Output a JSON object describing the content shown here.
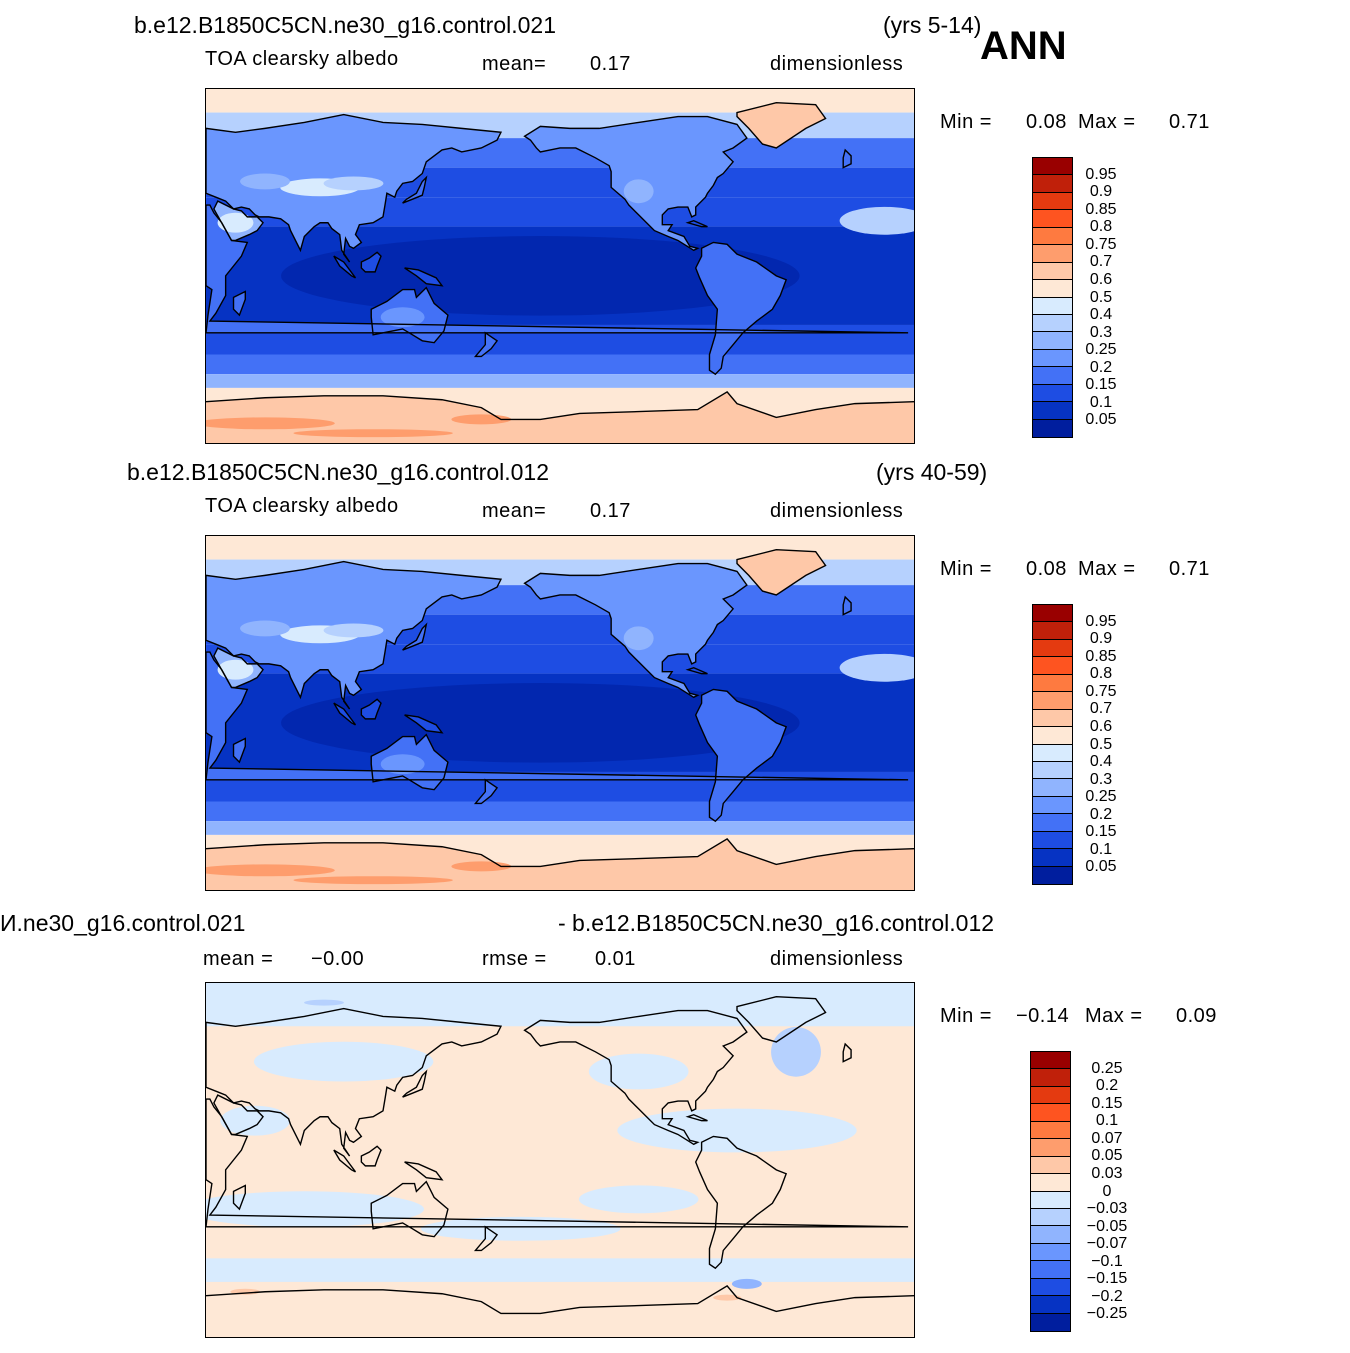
{
  "season": "ANN",
  "panels": [
    {
      "case_title": "b.e12.B1850C5CN.ne30_g16.control.021",
      "years": "(yrs 5-14)",
      "variable": "TOA  clearsky  albedo",
      "stat1_label": "mean=",
      "stat1_value": "0.17",
      "stat2_label": "",
      "stat2_value": "",
      "units": "dimensionless",
      "min_label": "Min  =",
      "min_value": "0.08",
      "max_label": "Max  =",
      "max_value": "0.71",
      "levels": [
        "0.95",
        "0.9",
        "0.85",
        "0.8",
        "0.75",
        "0.7",
        "0.6",
        "0.5",
        "0.4",
        "0.3",
        "0.25",
        "0.2",
        "0.15",
        "0.1",
        "0.05"
      ],
      "colors": [
        "#990000",
        "#c0200a",
        "#e43a10",
        "#fe5420",
        "#fe7a40",
        "#fe9d6d",
        "#fec8a8",
        "#fee8d6",
        "#d8ebfe",
        "#b6d1fe",
        "#90b4fe",
        "#6a96fe",
        "#4371f6",
        "#1e4de3",
        "#0633c3",
        "#001e9e"
      ],
      "map_type": "albedo"
    },
    {
      "case_title": "b.e12.B1850C5CN.ne30_g16.control.012",
      "years": "(yrs 40-59)",
      "variable": "TOA  clearsky  albedo",
      "stat1_label": "mean=",
      "stat1_value": "0.17",
      "stat2_label": "",
      "stat2_value": "",
      "units": "dimensionless",
      "min_label": "Min  =",
      "min_value": "0.08",
      "max_label": "Max  =",
      "max_value": "0.71",
      "levels": [
        "0.95",
        "0.9",
        "0.85",
        "0.8",
        "0.75",
        "0.7",
        "0.6",
        "0.5",
        "0.4",
        "0.3",
        "0.25",
        "0.2",
        "0.15",
        "0.1",
        "0.05"
      ],
      "colors": [
        "#990000",
        "#c0200a",
        "#e43a10",
        "#fe5420",
        "#fe7a40",
        "#fe9d6d",
        "#fec8a8",
        "#fee8d6",
        "#d8ebfe",
        "#b6d1fe",
        "#90b4fe",
        "#6a96fe",
        "#4371f6",
        "#1e4de3",
        "#0633c3",
        "#001e9e"
      ],
      "map_type": "albedo"
    },
    {
      "case_title": "И.ne30_g16.control.021",
      "years": "- b.e12.B1850C5CN.ne30_g16.control.012",
      "variable": "",
      "stat1_label": "mean  =",
      "stat1_value": "−0.00",
      "stat2_label": "rmse  =",
      "stat2_value": "0.01",
      "units": "dimensionless",
      "min_label": "Min  =",
      "min_value": "−0.14",
      "max_label": "Max  =",
      "max_value": "0.09",
      "levels": [
        "0.25",
        "0.2",
        "0.15",
        "0.1",
        "0.07",
        "0.05",
        "0.03",
        "0",
        "−0.03",
        "−0.05",
        "−0.07",
        "−0.1",
        "−0.15",
        "−0.2",
        "−0.25"
      ],
      "colors": [
        "#990000",
        "#c0200a",
        "#e43a10",
        "#fe5420",
        "#fe7a40",
        "#fe9d6d",
        "#fec8a8",
        "#fee8d6",
        "#d8ebfe",
        "#b6d1fe",
        "#90b4fe",
        "#6a96fe",
        "#4371f6",
        "#1e4de3",
        "#0633c3",
        "#001e9e"
      ],
      "map_type": "diff"
    }
  ]
}
